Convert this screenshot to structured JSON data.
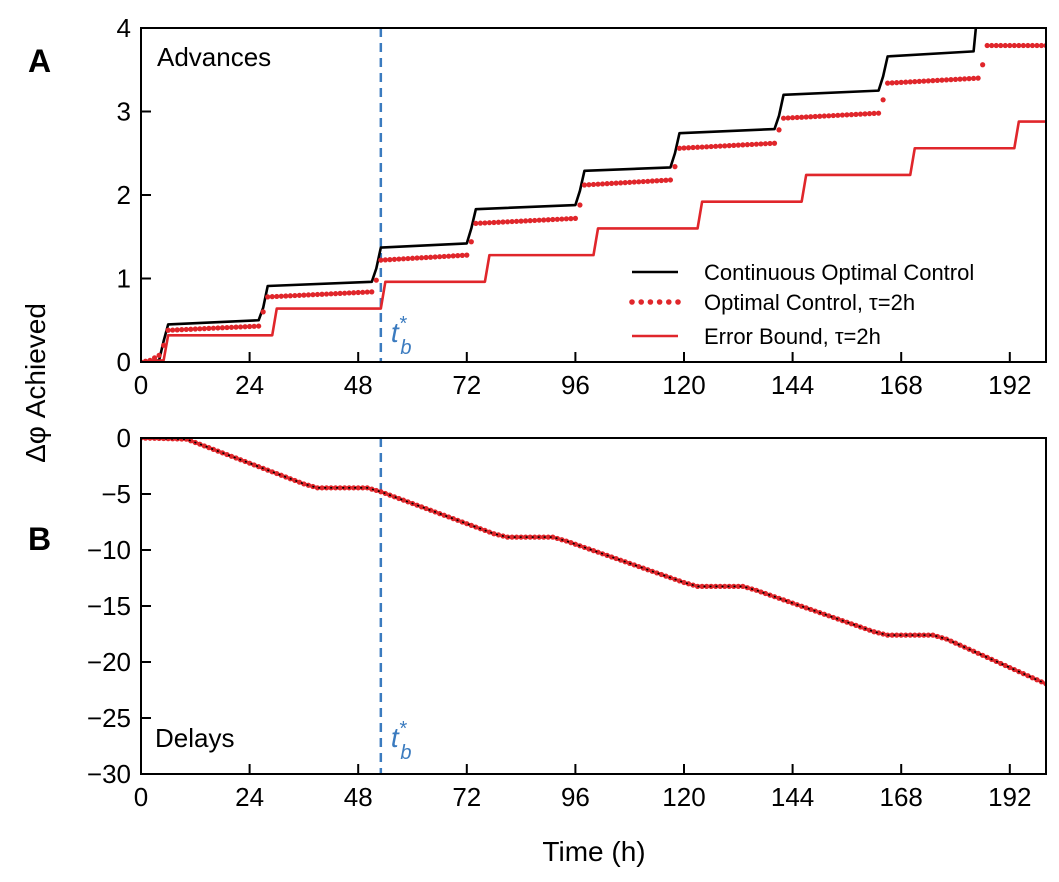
{
  "figure": {
    "ylabel_shared": "Δφ Achieved",
    "xlabel": "Time (h)",
    "tb_marker_base": "t",
    "tb_marker_sup": "*",
    "tb_marker_sub": "b",
    "tb_time": 53,
    "tb_color": "#3b7bbf"
  },
  "chart_data": [
    {
      "panel": "A",
      "type": "line",
      "title": "Advances",
      "xlabel": "",
      "ylabel": "Δφ Achieved",
      "xlim": [
        0,
        200
      ],
      "ylim": [
        0,
        4
      ],
      "xticks": [
        0,
        24,
        48,
        72,
        96,
        120,
        144,
        168,
        192
      ],
      "yticks": [
        0,
        1,
        2,
        3,
        4
      ],
      "grid": false,
      "legend_position": "lower-right",
      "series": [
        {
          "name": "Continuous Optimal Control",
          "style": "solid",
          "color": "#000000",
          "x": [
            0,
            4,
            5,
            6,
            26,
            27,
            28,
            51,
            52,
            53,
            72,
            73,
            74,
            96,
            97,
            98,
            117,
            118,
            119,
            140,
            141,
            142,
            163,
            164,
            165,
            184,
            184.5
          ],
          "y": [
            0,
            0.02,
            0.25,
            0.45,
            0.5,
            0.65,
            0.91,
            0.96,
            1.12,
            1.37,
            1.42,
            1.6,
            1.83,
            1.88,
            2.05,
            2.29,
            2.33,
            2.5,
            2.74,
            2.79,
            2.95,
            3.2,
            3.25,
            3.42,
            3.66,
            3.72,
            4.0
          ]
        },
        {
          "name": "Optimal Control, τ=2h",
          "style": "dotted",
          "color": "#e0262b",
          "x": [
            0,
            2,
            4,
            5,
            6,
            26,
            27,
            28,
            51,
            52,
            53,
            72,
            73,
            74,
            96,
            97,
            98,
            117,
            118,
            119,
            140,
            141,
            142,
            163,
            164,
            165,
            185,
            186,
            187,
            200
          ],
          "y": [
            0,
            0.02,
            0.08,
            0.2,
            0.38,
            0.43,
            0.6,
            0.78,
            0.84,
            0.98,
            1.22,
            1.28,
            1.44,
            1.66,
            1.72,
            1.88,
            2.12,
            2.18,
            2.34,
            2.56,
            2.62,
            2.78,
            2.92,
            2.98,
            3.14,
            3.34,
            3.4,
            3.56,
            3.79,
            3.79
          ]
        },
        {
          "name": "Error Bound, τ=2h",
          "style": "solid",
          "color": "#e0262b",
          "x": [
            0,
            5,
            6,
            29,
            30,
            53,
            54,
            76,
            77,
            100,
            101,
            123,
            124,
            146,
            147,
            170,
            171,
            193,
            194,
            200
          ],
          "y": [
            0,
            0.02,
            0.32,
            0.32,
            0.64,
            0.64,
            0.96,
            0.96,
            1.28,
            1.28,
            1.6,
            1.6,
            1.92,
            1.92,
            2.24,
            2.24,
            2.56,
            2.56,
            2.88,
            2.88
          ]
        }
      ]
    },
    {
      "panel": "B",
      "type": "line",
      "title": "Delays",
      "xlabel": "Time (h)",
      "ylabel": "Δφ Achieved",
      "xlim": [
        0,
        200
      ],
      "ylim": [
        -30,
        0
      ],
      "xticks": [
        0,
        24,
        48,
        72,
        96,
        120,
        144,
        168,
        192
      ],
      "yticks": [
        0,
        -5,
        -10,
        -15,
        -20,
        -25,
        -30
      ],
      "grid": false,
      "legend_position": "none",
      "series": [
        {
          "name": "Continuous Optimal Control",
          "style": "solid",
          "color": "#000000",
          "x": [
            0,
            10,
            12,
            36,
            39,
            50,
            53,
            78,
            81,
            91,
            94,
            120,
            123,
            133,
            136,
            162,
            165,
            175,
            178,
            200
          ],
          "y": [
            0,
            -0.1,
            -0.4,
            -4.1,
            -4.45,
            -4.45,
            -4.8,
            -8.55,
            -8.85,
            -8.85,
            -9.2,
            -12.9,
            -13.25,
            -13.25,
            -13.6,
            -17.3,
            -17.6,
            -17.6,
            -17.95,
            -21.95
          ]
        },
        {
          "name": "Optimal Control, τ=2h",
          "style": "dotted",
          "color": "#e0262b",
          "x": [
            0,
            10,
            12,
            36,
            39,
            50,
            53,
            78,
            81,
            91,
            94,
            120,
            123,
            133,
            136,
            162,
            165,
            175,
            178,
            200
          ],
          "y": [
            0,
            -0.1,
            -0.4,
            -4.1,
            -4.45,
            -4.45,
            -4.8,
            -8.55,
            -8.85,
            -8.85,
            -9.2,
            -12.9,
            -13.25,
            -13.25,
            -13.6,
            -17.3,
            -17.6,
            -17.6,
            -17.95,
            -21.95
          ]
        },
        {
          "name": "Error Bound, τ=2h",
          "style": "solid",
          "color": "#e0262b",
          "x": [
            0,
            10,
            12,
            36,
            39,
            50,
            53,
            78,
            81,
            91,
            94,
            120,
            123,
            133,
            136,
            162,
            165,
            175,
            178,
            200
          ],
          "y": [
            0,
            -0.1,
            -0.4,
            -4.1,
            -4.45,
            -4.45,
            -4.8,
            -8.55,
            -8.85,
            -8.85,
            -9.2,
            -12.9,
            -13.25,
            -13.25,
            -13.6,
            -17.3,
            -17.6,
            -17.6,
            -17.95,
            -21.95
          ]
        }
      ]
    }
  ]
}
